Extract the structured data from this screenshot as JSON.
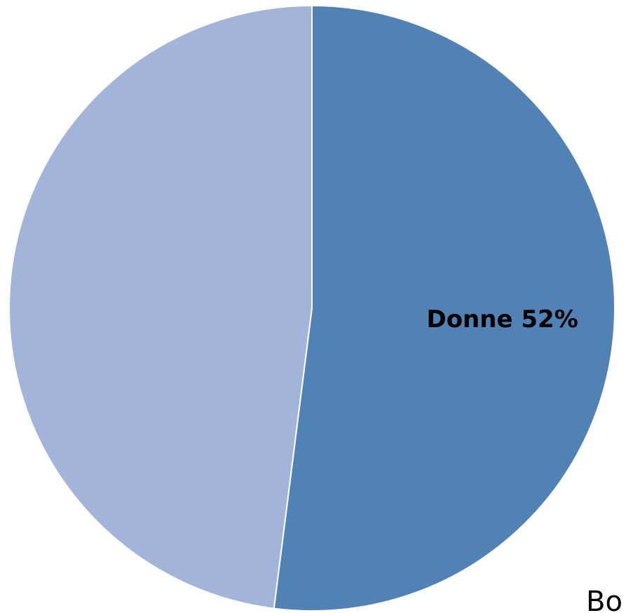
{
  "chart_data": {
    "type": "pie",
    "categories": [
      "Donne",
      null
    ],
    "values": [
      52,
      48
    ],
    "value_labels": [
      "52%",
      null
    ],
    "colors": [
      "#5182b5",
      "#a2b4d7"
    ],
    "annotation": "Bo"
  }
}
